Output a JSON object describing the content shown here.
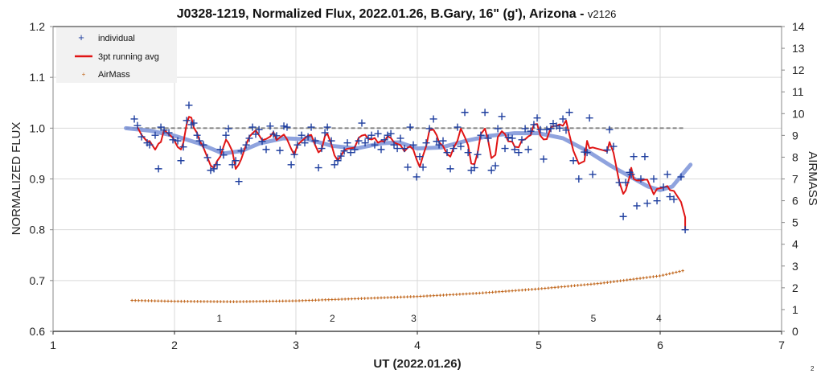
{
  "chart_data": {
    "type": "scatter",
    "title": "J0328-1219, Normalized Flux, 2022.01.26, B.Gary, 16\" (g'), Arizona - ",
    "title_version": "v2126",
    "xlabel": "UT (2022.01.26)",
    "ylabel": "NORMALIZED FLUX",
    "y2label": "AIRMASS",
    "xlim": [
      1,
      7
    ],
    "ylim": [
      0.6,
      1.2
    ],
    "y2lim": [
      0,
      14
    ],
    "x_ticks": [
      "1",
      "2",
      "3",
      "4",
      "5",
      "6",
      "7"
    ],
    "y_ticks": [
      "0.6",
      "0.7",
      "0.8",
      "0.9",
      "1.0",
      "1.1",
      "1.2"
    ],
    "y2_ticks": [
      "0",
      "1",
      "2",
      "3",
      "4",
      "5",
      "6",
      "7",
      "8",
      "9",
      "10",
      "11",
      "12",
      "13",
      "14"
    ],
    "grid": true,
    "legend_position": "top-left",
    "legend": [
      "individual",
      "3pt running avg",
      "AirMass"
    ],
    "page_number": "2",
    "colors": {
      "individual": "#1f3f9f",
      "running_avg": "#e01414",
      "airmass": "#c0651a",
      "smooth": "#7b93d8",
      "reference": "#808080"
    },
    "reference_line": {
      "y": 1.0,
      "x": [
        1.6,
        6.2
      ]
    },
    "annotations": [
      {
        "text": "1",
        "x": 2.37,
        "y": 0.625
      },
      {
        "text": "2",
        "x": 3.3,
        "y": 0.625
      },
      {
        "text": "3",
        "x": 3.97,
        "y": 0.625
      },
      {
        "text": "5",
        "x": 5.45,
        "y": 0.625
      },
      {
        "text": "4",
        "x": 5.99,
        "y": 0.625
      }
    ],
    "individual": [
      [
        1.669,
        1.018
      ],
      [
        1.695,
        1.005
      ],
      [
        1.729,
        0.983
      ],
      [
        1.775,
        0.971
      ],
      [
        1.795,
        0.967
      ],
      [
        1.841,
        0.986
      ],
      [
        1.868,
        0.92
      ],
      [
        1.888,
        1.002
      ],
      [
        1.914,
        0.996
      ],
      [
        1.954,
        0.991
      ],
      [
        1.987,
        0.977
      ],
      [
        2.027,
        0.975
      ],
      [
        2.053,
        0.936
      ],
      [
        2.073,
        0.963
      ],
      [
        2.1,
        1.015
      ],
      [
        2.119,
        1.045
      ],
      [
        2.139,
        1.007
      ],
      [
        2.159,
        1.01
      ],
      [
        2.186,
        0.986
      ],
      [
        2.206,
        0.975
      ],
      [
        2.239,
        0.967
      ],
      [
        2.272,
        0.942
      ],
      [
        2.298,
        0.917
      ],
      [
        2.325,
        0.92
      ],
      [
        2.351,
        0.928
      ],
      [
        2.378,
        0.958
      ],
      [
        2.404,
        0.947
      ],
      [
        2.424,
        0.986
      ],
      [
        2.444,
        0.999
      ],
      [
        2.477,
        0.928
      ],
      [
        2.504,
        0.936
      ],
      [
        2.53,
        0.895
      ],
      [
        2.55,
        0.955
      ],
      [
        2.59,
        0.967
      ],
      [
        2.616,
        0.98
      ],
      [
        2.643,
        1.002
      ],
      [
        2.669,
        0.988
      ],
      [
        2.696,
        0.997
      ],
      [
        2.722,
        0.974
      ],
      [
        2.755,
        0.958
      ],
      [
        2.788,
        1.004
      ],
      [
        2.815,
        0.988
      ],
      [
        2.841,
        0.985
      ],
      [
        2.868,
        0.956
      ],
      [
        2.901,
        1.004
      ],
      [
        2.927,
        1.002
      ],
      [
        2.961,
        0.928
      ],
      [
        2.987,
        0.948
      ],
      [
        3.013,
        0.967
      ],
      [
        3.047,
        0.986
      ],
      [
        3.073,
        0.971
      ],
      [
        3.1,
        0.983
      ],
      [
        3.126,
        1.002
      ],
      [
        3.159,
        0.975
      ],
      [
        3.186,
        0.922
      ],
      [
        3.212,
        0.96
      ],
      [
        3.239,
        0.991
      ],
      [
        3.259,
        1.002
      ],
      [
        3.292,
        0.975
      ],
      [
        3.318,
        0.928
      ],
      [
        3.345,
        0.936
      ],
      [
        3.371,
        0.945
      ],
      [
        3.398,
        0.955
      ],
      [
        3.424,
        0.971
      ],
      [
        3.451,
        0.952
      ],
      [
        3.484,
        0.958
      ],
      [
        3.517,
        0.975
      ],
      [
        3.543,
        1.01
      ],
      [
        3.57,
        0.971
      ],
      [
        3.596,
        0.98
      ],
      [
        3.623,
        0.986
      ],
      [
        3.649,
        0.967
      ],
      [
        3.676,
        0.989
      ],
      [
        3.702,
        0.958
      ],
      [
        3.729,
        0.977
      ],
      [
        3.755,
        0.986
      ],
      [
        3.782,
        0.989
      ],
      [
        3.808,
        0.967
      ],
      [
        3.835,
        0.96
      ],
      [
        3.861,
        0.98
      ],
      [
        3.894,
        0.96
      ],
      [
        3.921,
        0.923
      ],
      [
        3.941,
        1.002
      ],
      [
        3.967,
        0.967
      ],
      [
        3.994,
        0.904
      ],
      [
        4.02,
        0.944
      ],
      [
        4.047,
        0.923
      ],
      [
        4.073,
        0.971
      ],
      [
        4.1,
        0.999
      ],
      [
        4.133,
        1.018
      ],
      [
        4.159,
        0.974
      ],
      [
        4.179,
        0.967
      ],
      [
        4.212,
        0.975
      ],
      [
        4.245,
        0.952
      ],
      [
        4.272,
        0.92
      ],
      [
        4.298,
        0.96
      ],
      [
        4.331,
        1.002
      ],
      [
        4.358,
        0.964
      ],
      [
        4.391,
        1.031
      ],
      [
        4.418,
        0.952
      ],
      [
        4.444,
        0.917
      ],
      [
        4.471,
        0.922
      ],
      [
        4.497,
        0.948
      ],
      [
        4.523,
        0.986
      ],
      [
        4.557,
        1.031
      ],
      [
        4.583,
        0.98
      ],
      [
        4.61,
        0.917
      ],
      [
        4.643,
        0.926
      ],
      [
        4.663,
        0.999
      ],
      [
        4.696,
        1.023
      ],
      [
        4.722,
        0.96
      ],
      [
        4.749,
        0.982
      ],
      [
        4.782,
        0.98
      ],
      [
        4.802,
        0.958
      ],
      [
        4.835,
        0.952
      ],
      [
        4.861,
        0.977
      ],
      [
        4.888,
        0.999
      ],
      [
        4.914,
        0.958
      ],
      [
        4.934,
        0.994
      ],
      [
        4.96,
        1.007
      ],
      [
        4.987,
        1.02
      ],
      [
        5.013,
        0.997
      ],
      [
        5.04,
        0.939
      ],
      [
        5.066,
        0.997
      ],
      [
        5.1,
        0.999
      ],
      [
        5.119,
        1.009
      ],
      [
        5.146,
        1.004
      ],
      [
        5.172,
        1.0
      ],
      [
        5.199,
        1.018
      ],
      [
        5.225,
        0.996
      ],
      [
        5.252,
        1.031
      ],
      [
        5.285,
        0.936
      ],
      [
        5.33,
        0.9
      ],
      [
        5.376,
        0.953
      ],
      [
        5.398,
        0.952
      ],
      [
        5.418,
        1.02
      ],
      [
        5.444,
        0.909
      ],
      [
        5.563,
        0.957
      ],
      [
        5.583,
        0.997
      ],
      [
        5.616,
        0.964
      ],
      [
        5.663,
        0.893
      ],
      [
        5.696,
        0.826
      ],
      [
        5.716,
        0.893
      ],
      [
        5.749,
        0.913
      ],
      [
        5.762,
        0.909
      ],
      [
        5.782,
        0.944
      ],
      [
        5.808,
        0.847
      ],
      [
        5.841,
        0.9
      ],
      [
        5.874,
        0.944
      ],
      [
        5.894,
        0.852
      ],
      [
        5.947,
        0.9
      ],
      [
        5.974,
        0.857
      ],
      [
        6.027,
        0.884
      ],
      [
        6.06,
        0.909
      ],
      [
        6.08,
        0.865
      ],
      [
        6.113,
        0.86
      ],
      [
        6.172,
        0.904
      ],
      [
        6.206,
        0.8
      ]
    ],
    "smooth_fit": [
      [
        1.6,
        1.0
      ],
      [
        1.8,
        0.995
      ],
      [
        2.0,
        0.985
      ],
      [
        2.2,
        0.97
      ],
      [
        2.4,
        0.95
      ],
      [
        2.55,
        0.955
      ],
      [
        2.7,
        0.97
      ],
      [
        2.9,
        0.98
      ],
      [
        3.1,
        0.978
      ],
      [
        3.3,
        0.965
      ],
      [
        3.5,
        0.96
      ],
      [
        3.7,
        0.97
      ],
      [
        3.85,
        0.972
      ],
      [
        4.0,
        0.96
      ],
      [
        4.2,
        0.962
      ],
      [
        4.4,
        0.975
      ],
      [
        4.6,
        0.985
      ],
      [
        4.8,
        0.99
      ],
      [
        5.0,
        0.99
      ],
      [
        5.2,
        0.98
      ],
      [
        5.4,
        0.955
      ],
      [
        5.6,
        0.925
      ],
      [
        5.75,
        0.905
      ],
      [
        5.9,
        0.885
      ],
      [
        6.0,
        0.878
      ],
      [
        6.1,
        0.885
      ],
      [
        6.25,
        0.928
      ]
    ],
    "airmass": [
      [
        1.65,
        1.42
      ],
      [
        2.0,
        1.38
      ],
      [
        2.5,
        1.36
      ],
      [
        3.0,
        1.4
      ],
      [
        3.5,
        1.5
      ],
      [
        4.0,
        1.6
      ],
      [
        4.5,
        1.75
      ],
      [
        5.0,
        1.95
      ],
      [
        5.5,
        2.2
      ],
      [
        6.0,
        2.55
      ],
      [
        6.2,
        2.8
      ]
    ]
  }
}
